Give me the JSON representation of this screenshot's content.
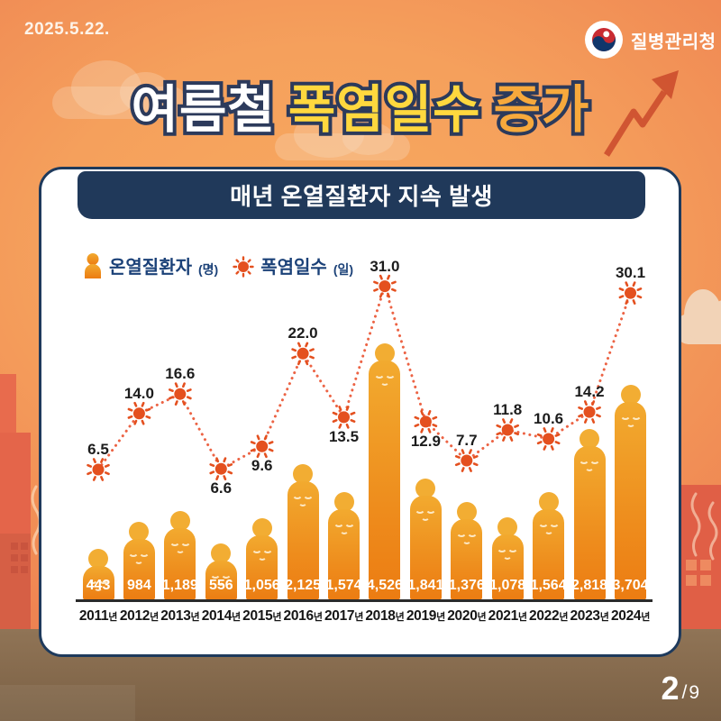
{
  "meta": {
    "date": "2025.5.22.",
    "agency": "질병관리청",
    "page_current": "2",
    "page_separator": "/",
    "page_total": "9"
  },
  "title": {
    "parts": [
      {
        "text": "여름철",
        "color": "#ffffff"
      },
      {
        "text": "폭염일수",
        "color": "#ffd83e"
      },
      {
        "text": "증가",
        "color": "#f7a93c"
      }
    ],
    "outline_color": "#2c3a5b"
  },
  "panel": {
    "heading": "매년 온열질환자 지속 발생",
    "banner_color": "#20395a"
  },
  "legend": [
    {
      "icon": "person-icon",
      "label": "온열질환자",
      "unit": "(명)"
    },
    {
      "icon": "sun-icon",
      "label": "폭염일수",
      "unit": "(일)"
    }
  ],
  "chart_data": {
    "type": "bar+line",
    "categories": [
      "2011년",
      "2012년",
      "2013년",
      "2014년",
      "2015년",
      "2016년",
      "2017년",
      "2018년",
      "2019년",
      "2020년",
      "2021년",
      "2022년",
      "2023년",
      "2024년"
    ],
    "years": [
      "2011",
      "2012",
      "2013",
      "2014",
      "2015",
      "2016",
      "2017",
      "2018",
      "2019",
      "2020",
      "2021",
      "2022",
      "2023",
      "2024"
    ],
    "year_suffix": "년",
    "series": [
      {
        "name": "온열질환자(명)",
        "type": "bar",
        "values": [
          443,
          984,
          1189,
          556,
          1056,
          2125,
          1574,
          4526,
          1841,
          1376,
          1078,
          1564,
          2818,
          3704
        ],
        "value_labels": [
          "443",
          "984",
          "1,189",
          "556",
          "1,056",
          "2,125",
          "1,574",
          "4,526",
          "1,841",
          "1,376",
          "1,078",
          "1,564",
          "2,818",
          "3,704"
        ]
      },
      {
        "name": "폭염일수(일)",
        "type": "line",
        "values": [
          6.5,
          14.0,
          16.6,
          6.6,
          9.6,
          22.0,
          13.5,
          31.0,
          12.9,
          7.7,
          11.8,
          10.6,
          14.2,
          30.1
        ],
        "value_labels": [
          "6.5",
          "14.0",
          "16.6",
          "6.6",
          "9.6",
          "22.0",
          "13.5",
          "31.0",
          "12.9",
          "7.7",
          "11.8",
          "10.6",
          "14.2",
          "30.1"
        ],
        "label_position": [
          "above",
          "above",
          "above",
          "below",
          "below",
          "above",
          "below",
          "above",
          "below",
          "above",
          "above",
          "above",
          "above",
          "above"
        ]
      }
    ],
    "colors": {
      "bar_top": "#f2aa2f",
      "bar_bottom": "#ec7c12",
      "line": "#ea5230",
      "sun": "#e4501f",
      "bar_value_text": "#ffffff",
      "year_text": "#161616",
      "line_label_text": "#1c1c1c",
      "axis": "#2b2b2b"
    },
    "legend_position": "top-left",
    "grid": false
  }
}
